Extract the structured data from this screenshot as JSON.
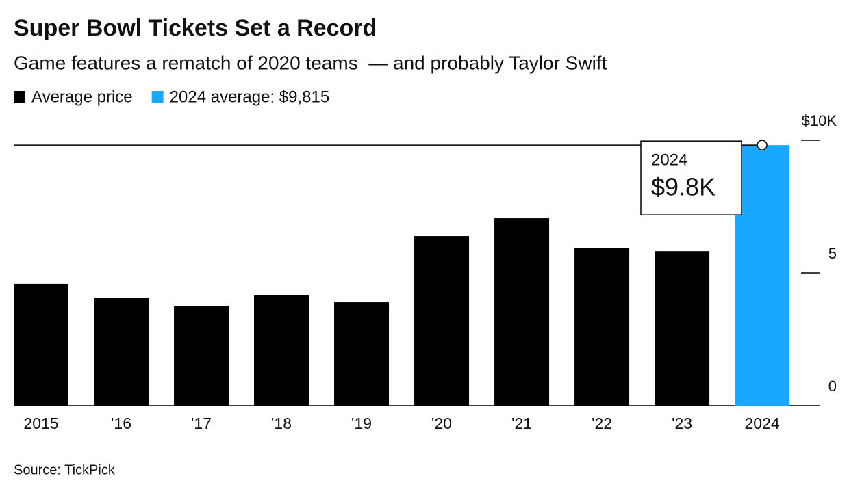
{
  "chart_data": {
    "type": "bar",
    "title": "Super Bowl Tickets Set a Record",
    "subtitle": "Game features a rematch of 2020 teams  — and probably Taylor Swift",
    "source": "Source: TickPick",
    "categories": [
      "2015",
      "'16",
      "'17",
      "'18",
      "'19",
      "'20",
      "'21",
      "'22",
      "'23",
      "2024"
    ],
    "series": [
      {
        "name": "Average price",
        "color": "#000000",
        "values": [
          4590,
          4070,
          3760,
          4150,
          3890,
          6390,
          7060,
          5930,
          5820,
          null
        ]
      },
      {
        "name": "2024 average: $9,815",
        "color": "#1aa7ff",
        "values": [
          null,
          null,
          null,
          null,
          null,
          null,
          null,
          null,
          null,
          9815
        ],
        "value_labels": [
          null,
          null,
          null,
          null,
          null,
          null,
          null,
          null,
          null,
          "$9.8K"
        ]
      }
    ],
    "ylim": [
      0,
      10000
    ],
    "yticks": [
      0,
      {
        "value": 5000,
        "label": "5"
      },
      {
        "value": 10000,
        "label": "$10K"
      }
    ]
  }
}
